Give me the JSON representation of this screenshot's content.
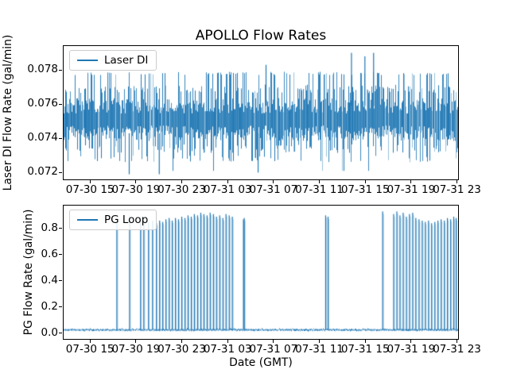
{
  "figure": {
    "background": "#ffffff",
    "text_color": "#000000",
    "accent_color": "#1f77b4"
  },
  "chart_data": [
    {
      "type": "line",
      "title": "APOLLO Flow Rates",
      "ylabel": "Laser DI Flow Rate (gal/min)",
      "legend": {
        "label": "Laser DI",
        "position": "upper left"
      },
      "grid": false,
      "ylim": [
        0.0716,
        0.0794
      ],
      "yticks": [
        0.072,
        0.074,
        0.076,
        0.078
      ],
      "ytick_labels": [
        "0.072",
        "0.074",
        "0.076",
        "0.078"
      ],
      "xlim_hours": [
        -2.3,
        32.1
      ],
      "x_reference": "hours after 07-30 15:00 GMT",
      "xtick_hours": [
        0,
        4,
        8,
        12,
        16,
        20,
        24,
        28,
        32
      ],
      "xtick_labels": [
        "07-30 15",
        "07-30 19",
        "07-30 23",
        "07-31 03",
        "07-31 07",
        "07-31 11",
        "07-31 15",
        "07-31 19",
        "07-31 23"
      ],
      "series": [
        {
          "name": "Laser DI",
          "color": "#1f77b4",
          "description": "dense quantized noise oscillating about 0.075 gal/min for the full span",
          "noise": {
            "seed": 7,
            "band_top": 0.0759,
            "band_bottom": 0.0743,
            "band_jitter": 0.0009,
            "up_level": 0.0778,
            "up_prob": 0.17,
            "mid_up_level": 0.0769,
            "mid_up_prob": 0.25,
            "down_level": 0.0728,
            "down_prob": 0.12,
            "mid_down_level": 0.0734,
            "mid_down_prob": 0.2,
            "rare_down_level": 0.0721,
            "rare_down_prob": 0.012
          },
          "tall_spikes": [
            [
              15.31,
              0.0783
            ],
            [
              22.76,
              0.079
            ],
            [
              23.93,
              0.0788
            ],
            [
              24.69,
              0.079
            ]
          ],
          "deep_spikes": [
            [
              3.38,
              0.0719
            ],
            [
              6.0,
              0.0719
            ],
            [
              14.62,
              0.072
            ]
          ]
        }
      ]
    },
    {
      "type": "line",
      "ylabel": "PG Flow Rate (gal/min)",
      "xlabel": "Date (GMT)",
      "legend": {
        "label": "PG Loop",
        "position": "upper left"
      },
      "grid": false,
      "ylim": [
        -0.045,
        0.975
      ],
      "yticks": [
        0.0,
        0.2,
        0.4,
        0.6,
        0.8
      ],
      "ytick_labels": [
        "0.0",
        "0.2",
        "0.4",
        "0.6",
        "0.8"
      ],
      "xlim_hours": [
        -2.3,
        32.1
      ],
      "x_reference": "hours after 07-30 15:00 GMT",
      "xtick_hours": [
        0,
        4,
        8,
        12,
        16,
        20,
        24,
        28,
        32
      ],
      "xtick_labels": [
        "07-30 15",
        "07-30 19",
        "07-30 23",
        "07-31 03",
        "07-31 07",
        "07-31 11",
        "07-31 15",
        "07-31 19",
        "07-31 23"
      ],
      "series": [
        {
          "name": "PG Loop",
          "color": "#1f77b4",
          "baseline": 0.026,
          "baseline_seed": 11,
          "description": "flat baseline ~0.03 gal/min with spike events to ~0.85-0.93 gal/min",
          "spikes": [
            [
              2.34,
              0.86
            ],
            [
              3.45,
              0.9
            ],
            [
              4.41,
              0.89
            ],
            [
              4.69,
              0.88
            ],
            [
              5.1,
              0.85
            ],
            [
              5.45,
              0.86
            ],
            [
              5.79,
              0.84
            ],
            [
              6.07,
              0.86
            ],
            [
              6.34,
              0.85
            ],
            [
              6.62,
              0.87
            ],
            [
              6.9,
              0.88
            ],
            [
              7.17,
              0.86
            ],
            [
              7.45,
              0.88
            ],
            [
              7.72,
              0.87
            ],
            [
              8.0,
              0.89
            ],
            [
              8.28,
              0.88
            ],
            [
              8.55,
              0.9
            ],
            [
              8.83,
              0.89
            ],
            [
              9.1,
              0.91
            ],
            [
              9.38,
              0.9
            ],
            [
              9.66,
              0.92
            ],
            [
              9.93,
              0.91
            ],
            [
              10.21,
              0.9
            ],
            [
              10.48,
              0.92
            ],
            [
              10.76,
              0.91
            ],
            [
              11.03,
              0.89
            ],
            [
              11.31,
              0.9
            ],
            [
              11.59,
              0.88
            ],
            [
              11.86,
              0.91
            ],
            [
              12.14,
              0.9
            ],
            [
              12.41,
              0.89
            ],
            [
              13.38,
              0.87
            ],
            [
              13.45,
              0.88
            ],
            [
              20.55,
              0.9
            ],
            [
              20.76,
              0.89
            ],
            [
              25.52,
              0.93
            ],
            [
              26.48,
              0.91
            ],
            [
              26.76,
              0.93
            ],
            [
              27.03,
              0.9
            ],
            [
              27.31,
              0.92
            ],
            [
              27.59,
              0.89
            ],
            [
              27.86,
              0.91
            ],
            [
              28.14,
              0.92
            ],
            [
              28.41,
              0.88
            ],
            [
              28.69,
              0.87
            ],
            [
              28.97,
              0.86
            ],
            [
              29.24,
              0.85
            ],
            [
              29.52,
              0.86
            ],
            [
              29.79,
              0.84
            ],
            [
              30.07,
              0.85
            ],
            [
              30.34,
              0.86
            ],
            [
              30.62,
              0.87
            ],
            [
              30.9,
              0.86
            ],
            [
              31.17,
              0.88
            ],
            [
              31.45,
              0.87
            ],
            [
              31.72,
              0.89
            ],
            [
              31.93,
              0.88
            ]
          ]
        }
      ]
    }
  ]
}
